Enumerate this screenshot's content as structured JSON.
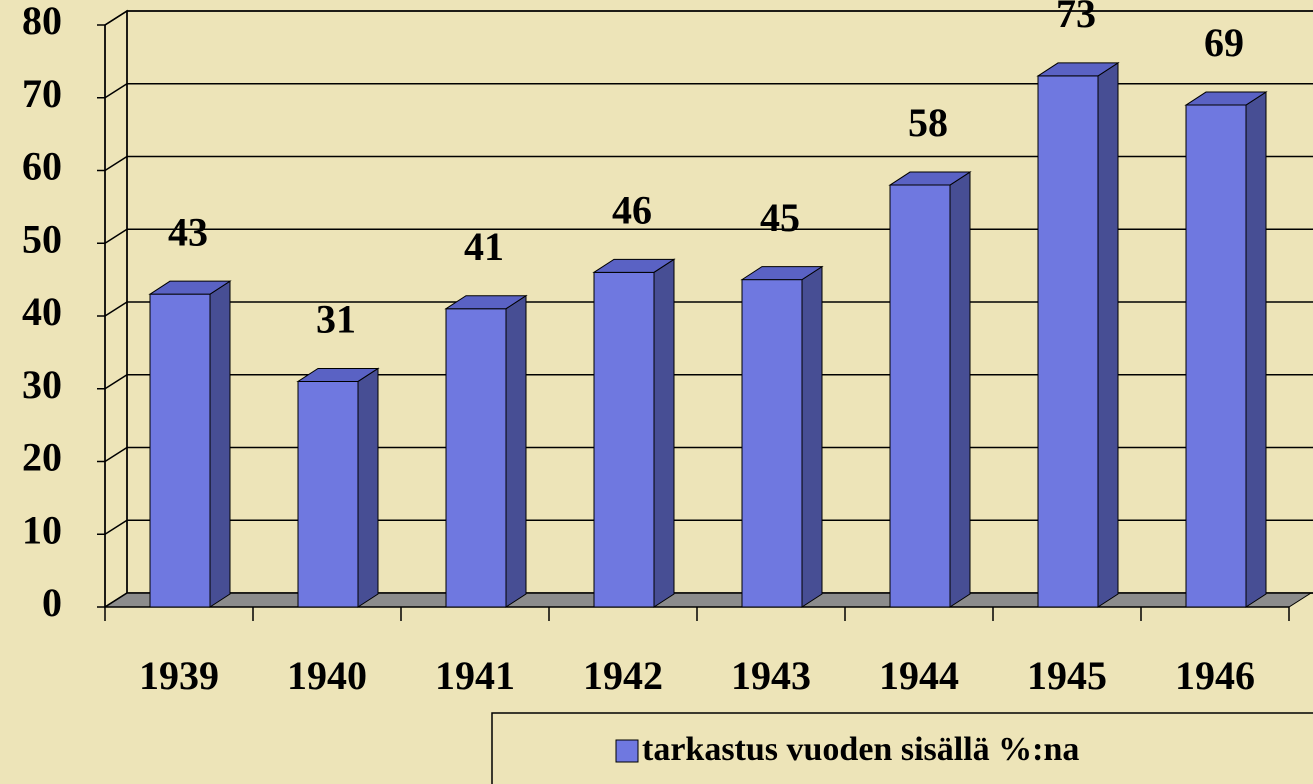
{
  "chart_data": {
    "type": "bar3d",
    "categories": [
      "1939",
      "1940",
      "1941",
      "1942",
      "1943",
      "1944",
      "1945",
      "1946"
    ],
    "series": [
      {
        "name": "tarkastus vuoden sisällä %:na",
        "color": "#6f78e0",
        "values": [
          43,
          31,
          41,
          46,
          45,
          58,
          73,
          69
        ]
      }
    ],
    "ylim": [
      0,
      80
    ],
    "yticks": [
      0,
      10,
      20,
      30,
      40,
      50,
      60,
      70,
      80
    ],
    "grid": true,
    "legend": "bottom-right"
  }
}
